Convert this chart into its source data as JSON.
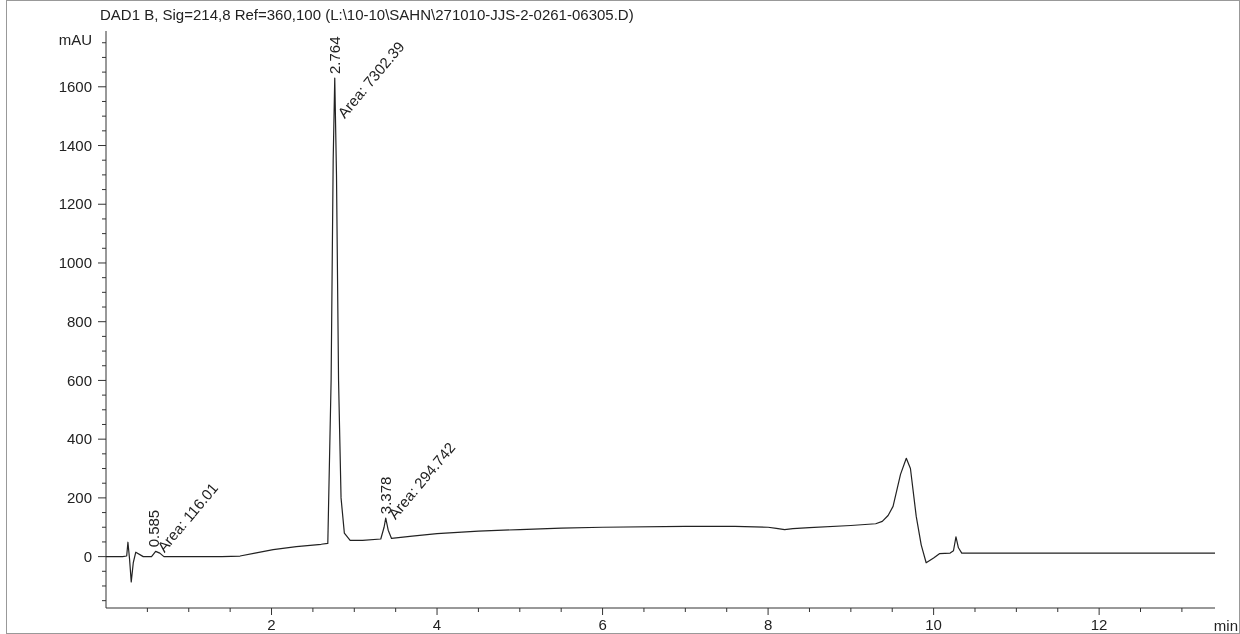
{
  "chart_data": {
    "type": "line",
    "title": "DAD1 B, Sig=214,8 Ref=360,100 (L:\\10-10\\SAHN\\271010-JJS-2-0261-06305.D)",
    "xlabel": "min",
    "ylabel": "mAU",
    "xlim": [
      0,
      13.4
    ],
    "ylim": [
      -175,
      1790
    ],
    "xticks": [
      {
        "value": 0.5,
        "label": null
      },
      {
        "value": 1,
        "label": null
      },
      {
        "value": 1.5,
        "label": null
      },
      2,
      {
        "value": 2.5,
        "label": null
      },
      {
        "value": 3,
        "label": null
      },
      {
        "value": 3.5,
        "label": null
      },
      4,
      {
        "value": 4.5,
        "label": null
      },
      {
        "value": 5,
        "label": null
      },
      {
        "value": 5.5,
        "label": null
      },
      6,
      {
        "value": 6.5,
        "label": null
      },
      {
        "value": 7,
        "label": null
      },
      {
        "value": 7.5,
        "label": null
      },
      8,
      {
        "value": 8.5,
        "label": null
      },
      {
        "value": 9,
        "label": null
      },
      {
        "value": 9.5,
        "label": null
      },
      10,
      {
        "value": 10.5,
        "label": null
      },
      {
        "value": 11,
        "label": null
      },
      {
        "value": 11.5,
        "label": null
      },
      12,
      {
        "value": 12.5,
        "label": null
      },
      {
        "value": 13,
        "label": null
      }
    ],
    "yticks": [
      {
        "value": -150,
        "label": null
      },
      {
        "value": -100,
        "label": null
      },
      {
        "value": -50,
        "label": null
      },
      0,
      {
        "value": 50,
        "label": null
      },
      {
        "value": 100,
        "label": null
      },
      {
        "value": 150,
        "label": null
      },
      200,
      {
        "value": 250,
        "label": null
      },
      {
        "value": 300,
        "label": null
      },
      {
        "value": 350,
        "label": null
      },
      400,
      {
        "value": 450,
        "label": null
      },
      {
        "value": 500,
        "label": null
      },
      {
        "value": 550,
        "label": null
      },
      600,
      {
        "value": 650,
        "label": null
      },
      {
        "value": 700,
        "label": null
      },
      {
        "value": 750,
        "label": null
      },
      800,
      {
        "value": 850,
        "label": null
      },
      {
        "value": 900,
        "label": null
      },
      {
        "value": 950,
        "label": null
      },
      1000,
      {
        "value": 1050,
        "label": null
      },
      {
        "value": 1100,
        "label": null
      },
      {
        "value": 1150,
        "label": null
      },
      1200,
      {
        "value": 1250,
        "label": null
      },
      {
        "value": 1300,
        "label": null
      },
      {
        "value": 1350,
        "label": null
      },
      1400,
      {
        "value": 1450,
        "label": null
      },
      {
        "value": 1500,
        "label": null
      },
      {
        "value": 1550,
        "label": null
      },
      1600,
      {
        "value": 1650,
        "label": null
      },
      {
        "value": 1700,
        "label": null
      },
      {
        "value": 1750,
        "label": null
      }
    ],
    "grid": false,
    "marker": "none",
    "line_style": "solid",
    "series": [
      {
        "color": "#222222",
        "x": [
          0,
          0.2,
          0.25,
          0.265,
          0.285,
          0.305,
          0.33,
          0.36,
          0.45,
          0.55,
          0.6,
          0.65,
          0.7,
          1.0,
          1.4,
          1.62,
          1.8,
          2.02,
          2.3,
          2.6,
          2.68,
          2.72,
          2.745,
          2.764,
          2.785,
          2.81,
          2.84,
          2.88,
          2.95,
          3.1,
          3.32,
          3.36,
          3.38,
          3.41,
          3.45,
          3.7,
          4.0,
          4.5,
          5.0,
          5.5,
          6.0,
          7.0,
          7.6,
          8.0,
          8.1,
          8.2,
          8.3,
          8.5,
          9.0,
          9.3,
          9.38,
          9.45,
          9.51,
          9.6,
          9.67,
          9.72,
          9.79,
          9.85,
          9.91,
          10.0,
          10.07,
          10.2,
          10.24,
          10.27,
          10.3,
          10.34,
          10.5,
          11,
          12,
          13,
          13.4
        ],
        "values": [
          0,
          0,
          2,
          49,
          -10,
          -86,
          -20,
          15,
          0,
          0,
          18,
          12,
          0,
          0,
          0,
          2,
          12,
          24,
          34,
          42,
          45,
          600,
          1350,
          1630,
          1300,
          600,
          200,
          80,
          55,
          55,
          60,
          100,
          131,
          90,
          62,
          70,
          78,
          87,
          92,
          97,
          100,
          103,
          103,
          100,
          96,
          92,
          95,
          99,
          106,
          112,
          120,
          140,
          171,
          280,
          335,
          300,
          137,
          40,
          -21,
          -5,
          10,
          12,
          20,
          67,
          30,
          12,
          12,
          12,
          12,
          12,
          12
        ]
      }
    ],
    "annotations": [
      {
        "text": "0.585",
        "x": 0.585,
        "y": 18
      },
      {
        "text": "Area: 116.01",
        "x": 0.585,
        "y": 18
      },
      {
        "text": "2.764",
        "x": 2.764,
        "y": 1630
      },
      {
        "text": "Area: 7302.39",
        "x": 2.764,
        "y": 1630
      },
      {
        "text": "3.378",
        "x": 3.378,
        "y": 131
      },
      {
        "text": "Area: 294.742",
        "x": 3.378,
        "y": 131
      }
    ]
  }
}
